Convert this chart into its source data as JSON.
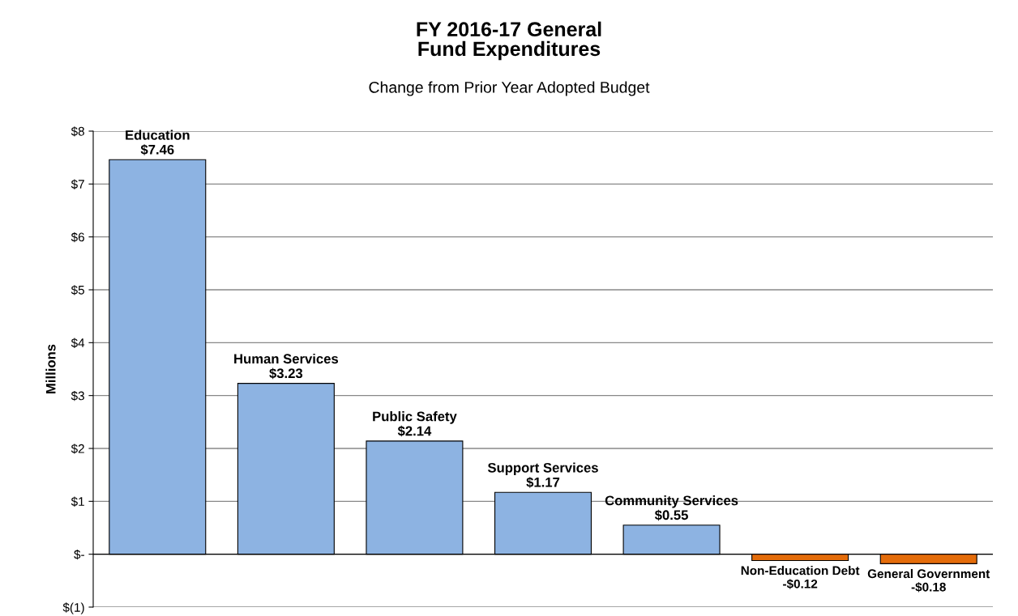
{
  "chart_data": {
    "type": "bar",
    "title": "FY 2016-17 General\nFund Expenditures",
    "subtitle": "Change from Prior Year Adopted Budget",
    "ylabel": "Millions",
    "categories": [
      "Education",
      "Human Services",
      "Public Safety",
      "Support Services",
      "Community Services",
      "Non-Education Debt",
      "General Government"
    ],
    "values": [
      7.46,
      3.23,
      2.14,
      1.17,
      0.55,
      -0.12,
      -0.18
    ],
    "value_labels": [
      "$7.46",
      "$3.23",
      "$2.14",
      "$1.17",
      "$0.55",
      "-$0.12",
      "-$0.18"
    ],
    "colors": [
      "#8db3e2",
      "#8db3e2",
      "#8db3e2",
      "#8db3e2",
      "#8db3e2",
      "#e46c0a",
      "#e46c0a"
    ],
    "ylim": [
      -1,
      8
    ],
    "yticks": [
      {
        "value": -1,
        "label": "$(1)"
      },
      {
        "value": 0,
        "label": "$-"
      },
      {
        "value": 1,
        "label": "$1"
      },
      {
        "value": 2,
        "label": "$2"
      },
      {
        "value": 3,
        "label": "$3"
      },
      {
        "value": 4,
        "label": "$4"
      },
      {
        "value": 5,
        "label": "$5"
      },
      {
        "value": 6,
        "label": "$6"
      },
      {
        "value": 7,
        "label": "$7"
      },
      {
        "value": 8,
        "label": "$8"
      }
    ],
    "grid": "y",
    "tick_labels": "y"
  }
}
